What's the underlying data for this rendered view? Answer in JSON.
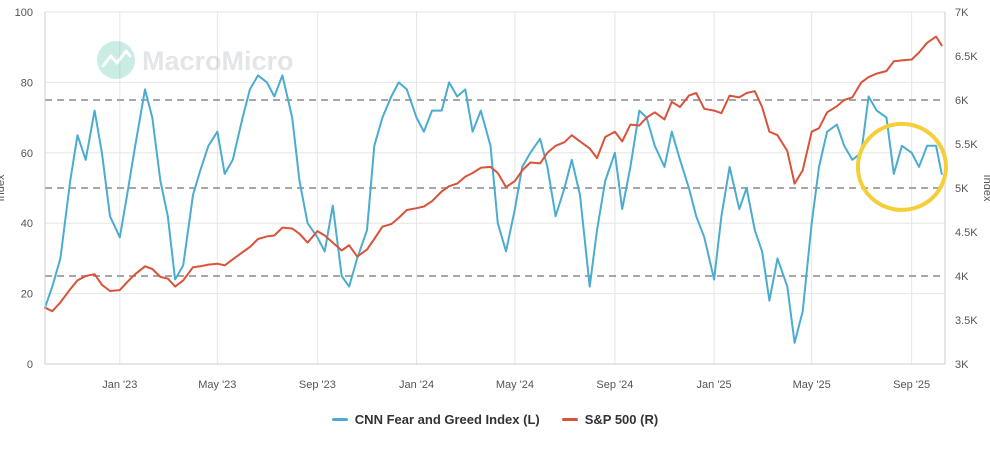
{
  "watermark": {
    "text": "MacroMicro"
  },
  "legend": {
    "series_left_label": "CNN Fear and Greed Index (L)",
    "series_right_label": "S&P 500 (R)"
  },
  "colors": {
    "fear_greed": "#4bacd0",
    "sp500": "#d9533b",
    "highlight": "#f5cf3a",
    "grid": "#e6e6e6",
    "dashed": "#888888"
  },
  "chart_data": {
    "type": "line",
    "title": "",
    "xlabel": "",
    "ylabel_left": "Index",
    "ylabel_right": "Index",
    "x_range": [
      "2022-10-01",
      "2025-10-12"
    ],
    "ylim_left": [
      0,
      100
    ],
    "ylim_right": [
      3000,
      7000
    ],
    "yticks_left": [
      "0",
      "20",
      "40",
      "60",
      "80",
      "100"
    ],
    "yticks_left_values": [
      0,
      20,
      40,
      60,
      80,
      100
    ],
    "yticks_right": [
      "3K",
      "3.5K",
      "4K",
      "4.5K",
      "5K",
      "5.5K",
      "6K",
      "6.5K",
      "7K"
    ],
    "yticks_right_values": [
      3000,
      3500,
      4000,
      4500,
      5000,
      5500,
      6000,
      6500,
      7000
    ],
    "xticks": [
      "Jan '23",
      "May '23",
      "Sep '23",
      "Jan '24",
      "May '24",
      "Sep '24",
      "Jan '25",
      "May '25",
      "Sep '25"
    ],
    "xticks_dates": [
      "2023-01-01",
      "2023-05-01",
      "2023-09-01",
      "2024-01-01",
      "2024-05-01",
      "2024-09-01",
      "2025-01-01",
      "2025-05-01",
      "2025-09-01"
    ],
    "reference_lines_left": [
      25,
      50,
      75
    ],
    "series": [
      {
        "name": "CNN Fear and Greed Index (L)",
        "axis": "left",
        "dates": [
          "2022-10-01",
          "2022-10-10",
          "2022-10-20",
          "2022-11-01",
          "2022-11-10",
          "2022-11-20",
          "2022-12-01",
          "2022-12-10",
          "2022-12-20",
          "2023-01-01",
          "2023-01-10",
          "2023-01-20",
          "2023-02-01",
          "2023-02-10",
          "2023-02-20",
          "2023-03-01",
          "2023-03-10",
          "2023-03-20",
          "2023-04-01",
          "2023-04-10",
          "2023-04-20",
          "2023-05-01",
          "2023-05-10",
          "2023-05-20",
          "2023-06-01",
          "2023-06-10",
          "2023-06-20",
          "2023-07-01",
          "2023-07-10",
          "2023-07-20",
          "2023-08-01",
          "2023-08-10",
          "2023-08-20",
          "2023-09-01",
          "2023-09-10",
          "2023-09-20",
          "2023-10-01",
          "2023-10-10",
          "2023-10-20",
          "2023-11-01",
          "2023-11-10",
          "2023-11-20",
          "2023-12-01",
          "2023-12-10",
          "2023-12-20",
          "2024-01-01",
          "2024-01-10",
          "2024-01-20",
          "2024-02-01",
          "2024-02-10",
          "2024-02-20",
          "2024-03-01",
          "2024-03-10",
          "2024-03-20",
          "2024-04-01",
          "2024-04-10",
          "2024-04-20",
          "2024-05-01",
          "2024-05-10",
          "2024-05-20",
          "2024-06-01",
          "2024-06-10",
          "2024-06-20",
          "2024-07-01",
          "2024-07-10",
          "2024-07-20",
          "2024-08-01",
          "2024-08-10",
          "2024-08-20",
          "2024-09-01",
          "2024-09-10",
          "2024-09-20",
          "2024-10-01",
          "2024-10-10",
          "2024-10-20",
          "2024-11-01",
          "2024-11-10",
          "2024-11-20",
          "2024-12-01",
          "2024-12-10",
          "2024-12-20",
          "2025-01-01",
          "2025-01-10",
          "2025-01-20",
          "2025-02-01",
          "2025-02-10",
          "2025-02-20",
          "2025-03-01",
          "2025-03-10",
          "2025-03-20",
          "2025-04-01",
          "2025-04-10",
          "2025-04-20",
          "2025-05-01",
          "2025-05-10",
          "2025-05-20",
          "2025-06-01",
          "2025-06-10",
          "2025-06-20",
          "2025-07-01",
          "2025-07-10",
          "2025-07-20",
          "2025-08-01",
          "2025-08-10",
          "2025-08-20",
          "2025-09-01",
          "2025-09-10",
          "2025-09-20",
          "2025-10-01",
          "2025-10-08"
        ],
        "values": [
          16,
          22,
          30,
          52,
          65,
          58,
          72,
          60,
          42,
          36,
          48,
          62,
          78,
          70,
          52,
          42,
          24,
          28,
          48,
          55,
          62,
          66,
          54,
          58,
          70,
          78,
          82,
          80,
          76,
          82,
          70,
          52,
          40,
          36,
          32,
          45,
          25,
          22,
          30,
          38,
          62,
          70,
          76,
          80,
          78,
          70,
          66,
          72,
          72,
          80,
          76,
          78,
          66,
          72,
          62,
          40,
          32,
          44,
          56,
          60,
          64,
          56,
          42,
          50,
          58,
          48,
          22,
          38,
          52,
          60,
          44,
          56,
          72,
          70,
          62,
          56,
          66,
          58,
          50,
          42,
          36,
          24,
          42,
          56,
          44,
          50,
          38,
          32,
          18,
          30,
          22,
          6,
          15,
          40,
          56,
          66,
          68,
          62,
          58,
          60,
          76,
          72,
          70,
          54,
          62,
          60,
          56,
          62,
          62,
          54
        ]
      },
      {
        "name": "S&P 500 (R)",
        "axis": "right",
        "dates": [
          "2022-10-01",
          "2022-10-10",
          "2022-10-20",
          "2022-11-01",
          "2022-11-10",
          "2022-11-20",
          "2022-12-01",
          "2022-12-10",
          "2022-12-20",
          "2023-01-01",
          "2023-01-10",
          "2023-01-20",
          "2023-02-01",
          "2023-02-10",
          "2023-02-20",
          "2023-03-01",
          "2023-03-10",
          "2023-03-20",
          "2023-04-01",
          "2023-04-10",
          "2023-04-20",
          "2023-05-01",
          "2023-05-10",
          "2023-05-20",
          "2023-06-01",
          "2023-06-10",
          "2023-06-20",
          "2023-07-01",
          "2023-07-10",
          "2023-07-20",
          "2023-08-01",
          "2023-08-10",
          "2023-08-20",
          "2023-09-01",
          "2023-09-10",
          "2023-09-20",
          "2023-10-01",
          "2023-10-10",
          "2023-10-20",
          "2023-11-01",
          "2023-11-10",
          "2023-11-20",
          "2023-12-01",
          "2023-12-10",
          "2023-12-20",
          "2024-01-01",
          "2024-01-10",
          "2024-01-20",
          "2024-02-01",
          "2024-02-10",
          "2024-02-20",
          "2024-03-01",
          "2024-03-10",
          "2024-03-20",
          "2024-04-01",
          "2024-04-10",
          "2024-04-20",
          "2024-05-01",
          "2024-05-10",
          "2024-05-20",
          "2024-06-01",
          "2024-06-10",
          "2024-06-20",
          "2024-07-01",
          "2024-07-10",
          "2024-07-20",
          "2024-08-01",
          "2024-08-10",
          "2024-08-20",
          "2024-09-01",
          "2024-09-10",
          "2024-09-20",
          "2024-10-01",
          "2024-10-10",
          "2024-10-20",
          "2024-11-01",
          "2024-11-10",
          "2024-11-20",
          "2024-12-01",
          "2024-12-10",
          "2024-12-20",
          "2025-01-01",
          "2025-01-10",
          "2025-01-20",
          "2025-02-01",
          "2025-02-10",
          "2025-02-20",
          "2025-03-01",
          "2025-03-10",
          "2025-03-20",
          "2025-04-01",
          "2025-04-10",
          "2025-04-20",
          "2025-05-01",
          "2025-05-10",
          "2025-05-20",
          "2025-06-01",
          "2025-06-10",
          "2025-06-20",
          "2025-07-01",
          "2025-07-10",
          "2025-07-20",
          "2025-08-01",
          "2025-08-10",
          "2025-08-20",
          "2025-09-01",
          "2025-09-10",
          "2025-09-20",
          "2025-10-01",
          "2025-10-08"
        ],
        "values": [
          3640,
          3600,
          3700,
          3850,
          3950,
          4000,
          4020,
          3900,
          3830,
          3840,
          3930,
          4020,
          4110,
          4080,
          3990,
          3970,
          3880,
          3950,
          4100,
          4110,
          4130,
          4140,
          4120,
          4190,
          4270,
          4330,
          4420,
          4450,
          4460,
          4550,
          4540,
          4480,
          4380,
          4510,
          4460,
          4380,
          4290,
          4350,
          4220,
          4300,
          4420,
          4560,
          4590,
          4660,
          4750,
          4770,
          4790,
          4850,
          4960,
          5020,
          5050,
          5130,
          5170,
          5230,
          5240,
          5170,
          5010,
          5080,
          5200,
          5290,
          5280,
          5400,
          5480,
          5520,
          5600,
          5530,
          5450,
          5340,
          5580,
          5640,
          5530,
          5720,
          5710,
          5800,
          5860,
          5780,
          5980,
          5920,
          6050,
          6080,
          5900,
          5880,
          5850,
          6050,
          6030,
          6080,
          6100,
          5920,
          5640,
          5600,
          5420,
          5050,
          5200,
          5640,
          5680,
          5860,
          5930,
          6000,
          6030,
          6200,
          6260,
          6300,
          6330,
          6440,
          6450,
          6460,
          6540,
          6650,
          6720,
          6620
        ]
      }
    ],
    "annotations": [
      {
        "type": "circle",
        "description": "highlight",
        "date": "2025-08-20",
        "value": 56
      }
    ]
  }
}
